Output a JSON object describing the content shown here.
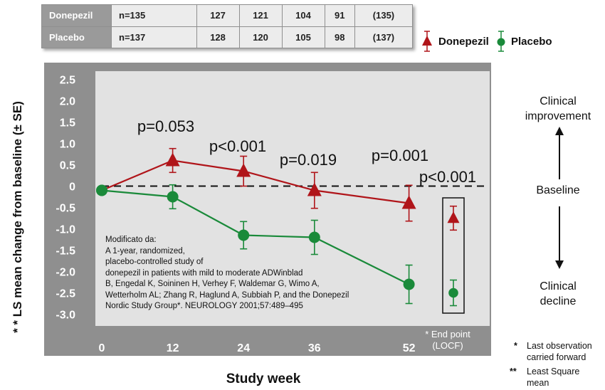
{
  "n_table": {
    "rows": [
      {
        "label": "Donepezil",
        "values": [
          "n=135",
          "127",
          "121",
          "104",
          "91",
          "(135)"
        ]
      },
      {
        "label": "Placebo",
        "values": [
          "n=137",
          "128",
          "120",
          "105",
          "98",
          "(137)"
        ]
      }
    ]
  },
  "chart_data": {
    "type": "line",
    "xlabel": "Study week",
    "ylabel": "* * LS mean change from baseline (± SE)",
    "x": [
      0,
      12,
      24,
      36,
      52
    ],
    "xlim": [
      0,
      64
    ],
    "ylim": [
      -3.0,
      2.5
    ],
    "y_ticks": [
      "2.5",
      "2.0",
      "1.5",
      "1.0",
      "0.5",
      "0",
      "-0.5",
      "-1.0",
      "-1.5",
      "-2.0",
      "-2.5",
      "-3.0"
    ],
    "x_ticks": [
      "0",
      "12",
      "24",
      "36",
      "52"
    ],
    "baseline": 0,
    "legend_position": "top-right",
    "series": [
      {
        "name": "Donepezil",
        "color": "#b0151a",
        "marker": "triangle",
        "values": [
          -0.1,
          0.6,
          0.35,
          -0.1,
          -0.4
        ],
        "se": [
          0,
          0.28,
          0.35,
          0.42,
          0.42
        ],
        "endpoint": {
          "value": -0.75,
          "se": 0.28
        }
      },
      {
        "name": "Placebo",
        "color": "#1a8a3a",
        "marker": "circle",
        "values": [
          -0.1,
          -0.25,
          -1.15,
          -1.2,
          -2.3
        ],
        "se": [
          0,
          0.28,
          0.32,
          0.4,
          0.45
        ],
        "endpoint": {
          "value": -2.5,
          "se": 0.3
        }
      }
    ],
    "annotations": [
      {
        "text": "p=0.053",
        "x": 12
      },
      {
        "text": "p<0.001",
        "x": 24
      },
      {
        "text": "p=0.019",
        "x": 36
      },
      {
        "text": "p=0.001",
        "x": 52
      },
      {
        "text": "p<0.001",
        "x": "end point"
      }
    ]
  },
  "source_lines": [
    "Modificato da:",
    "A 1-year, randomized,",
    "placebo-controlled study of",
    "donepezil in patients with mild to moderate ADWinblad",
    "B, Engedal K, Soininen H, Verhey F, Waldemar G, Wimo A,",
    "Wetterholm AL; Zhang R, Haglund A, Subbiah P, and the Donepezil",
    "Nordic Study Group*. NEUROLOGY 2001;57:489–495"
  ],
  "endpoint_label": [
    "* End point",
    "(LOCF)"
  ],
  "right_panel": {
    "improvement": [
      "Clinical",
      "improvement"
    ],
    "baseline": "Baseline",
    "decline": [
      "Clinical",
      "decline"
    ]
  },
  "footnotes": [
    {
      "mark": "*",
      "lines": [
        "Last observation",
        "carried forward"
      ]
    },
    {
      "mark": "**",
      "lines": [
        "Least Square",
        "mean"
      ]
    }
  ]
}
